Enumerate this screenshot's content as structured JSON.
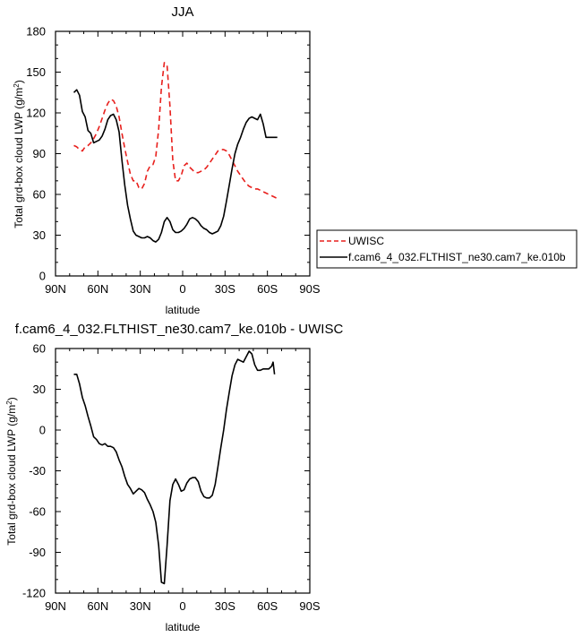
{
  "chart_data": [
    {
      "type": "line",
      "title": "JJA",
      "xlabel": "latitude",
      "ylabel": "Total grd-box cloud LWP (g/m²)",
      "xlim": [
        90,
        -90
      ],
      "ylim": [
        0,
        180
      ],
      "x_ticks": [
        90,
        60,
        30,
        0,
        -30,
        -60,
        -90
      ],
      "x_tick_labels": [
        "90N",
        "60N",
        "30N",
        "0",
        "30S",
        "60S",
        "90S"
      ],
      "y_ticks": [
        0,
        30,
        60,
        90,
        120,
        150,
        180
      ],
      "y_tick_labels": [
        "0",
        "30",
        "60",
        "90",
        "120",
        "150",
        "180"
      ],
      "legend_position": "right",
      "series": [
        {
          "name": "UWISC",
          "color": "#e8201d",
          "dash": "dashed",
          "x": [
            77,
            75,
            73,
            71,
            69,
            67,
            65,
            63,
            61,
            59,
            57,
            55,
            53,
            51,
            49,
            47,
            45,
            43,
            41,
            39,
            37,
            35,
            33,
            31,
            29,
            27,
            25,
            23,
            21,
            19,
            17,
            15,
            13,
            11,
            9,
            7,
            5,
            3,
            1,
            -1,
            -3,
            -5,
            -7,
            -9,
            -11,
            -13,
            -15,
            -17,
            -19,
            -21,
            -23,
            -25,
            -27,
            -29,
            -31,
            -33,
            -35,
            -37,
            -39,
            -41,
            -43,
            -45,
            -47,
            -49,
            -51,
            -53,
            -55,
            -57,
            -59,
            -61,
            -63,
            -65,
            -67
          ],
          "y": [
            96,
            95,
            93,
            92,
            95,
            96,
            98,
            101,
            105,
            110,
            116,
            122,
            127,
            130,
            129,
            125,
            117,
            105,
            94,
            84,
            75,
            70,
            70,
            65,
            64,
            68,
            77,
            81,
            82,
            88,
            108,
            139,
            157,
            155,
            125,
            85,
            70,
            70,
            74,
            81,
            83,
            80,
            78,
            76,
            76,
            77,
            78,
            80,
            83,
            86,
            89,
            92,
            93,
            93,
            92,
            89,
            85,
            81,
            77,
            74,
            71,
            68,
            66,
            65,
            64,
            64,
            63,
            62,
            61,
            60,
            59,
            58,
            57
          ]
        },
        {
          "name": "f.cam6_4_032.FLTHIST_ne30.cam7_ke.010b",
          "color": "#000000",
          "dash": "solid",
          "x": [
            77,
            75,
            73,
            71,
            69,
            67,
            65,
            63,
            61,
            59,
            57,
            55,
            53,
            51,
            49,
            47,
            45,
            43,
            41,
            39,
            37,
            35,
            33,
            31,
            29,
            27,
            25,
            23,
            21,
            19,
            17,
            15,
            13,
            11,
            9,
            7,
            5,
            3,
            1,
            -1,
            -3,
            -5,
            -7,
            -9,
            -11,
            -13,
            -15,
            -17,
            -19,
            -21,
            -23,
            -25,
            -27,
            -29,
            -31,
            -33,
            -35,
            -37,
            -39,
            -41,
            -43,
            -45,
            -47,
            -49,
            -51,
            -53,
            -55,
            -57,
            -59,
            -61,
            -63,
            -65,
            -67
          ],
          "y": [
            135,
            137,
            133,
            121,
            117,
            107,
            105,
            98,
            99,
            100,
            103,
            108,
            115,
            118,
            119,
            115,
            106,
            85,
            67,
            52,
            42,
            33,
            30,
            29,
            28,
            28,
            29,
            28,
            26,
            25,
            27,
            32,
            40,
            43,
            40,
            34,
            32,
            32,
            33,
            35,
            38,
            42,
            43,
            42,
            40,
            37,
            35,
            34,
            32,
            31,
            32,
            33,
            37,
            44,
            55,
            67,
            79,
            90,
            97,
            102,
            108,
            113,
            116,
            117,
            116,
            115,
            119,
            112,
            102,
            102,
            102,
            102,
            102
          ]
        }
      ]
    },
    {
      "type": "line",
      "title": "f.cam6_4_032.FLTHIST_ne30.cam7_ke.010b - UWISC",
      "xlabel": "latitude",
      "ylabel": "Total grd-box cloud LWP (g/m²)",
      "xlim": [
        90,
        -90
      ],
      "ylim": [
        -120,
        60
      ],
      "x_ticks": [
        90,
        60,
        30,
        0,
        -30,
        -60,
        -90
      ],
      "x_tick_labels": [
        "90N",
        "60N",
        "30N",
        "0",
        "30S",
        "60S",
        "90S"
      ],
      "y_ticks": [
        -120,
        -90,
        -60,
        -30,
        0,
        30,
        60
      ],
      "y_tick_labels": [
        "-120",
        "-90",
        "-60",
        "-30",
        "0",
        "30",
        "60"
      ],
      "series": [
        {
          "color": "#000000",
          "dash": "solid",
          "x": [
            77,
            75,
            73,
            71,
            69,
            67,
            65,
            63,
            61,
            59,
            57,
            55,
            53,
            51,
            49,
            47,
            45,
            43,
            41,
            39,
            37,
            35,
            33,
            31,
            29,
            27,
            25,
            23,
            21,
            19,
            17,
            15,
            13,
            11,
            9,
            7,
            5,
            3,
            1,
            -1,
            -3,
            -5,
            -7,
            -9,
            -11,
            -13,
            -15,
            -17,
            -19,
            -21,
            -23,
            -25,
            -27,
            -29,
            -31,
            -33,
            -35,
            -37,
            -39,
            -41,
            -43,
            -45,
            -47,
            -49,
            -51,
            -53,
            -55,
            -57,
            -59,
            -61,
            -63,
            -64,
            -65
          ],
          "y": [
            41,
            41,
            34,
            24,
            18,
            10,
            3,
            -5,
            -7,
            -10,
            -11,
            -10,
            -12,
            -12,
            -13,
            -16,
            -22,
            -27,
            -34,
            -40,
            -43,
            -47,
            -45,
            -43,
            -44,
            -46,
            -51,
            -55,
            -60,
            -68,
            -85,
            -112,
            -113,
            -85,
            -52,
            -40,
            -36,
            -40,
            -45,
            -44,
            -39,
            -36,
            -35,
            -35,
            -38,
            -45,
            -49,
            -50,
            -50,
            -48,
            -40,
            -27,
            -13,
            0,
            15,
            28,
            40,
            48,
            52,
            51,
            50,
            54,
            58,
            56,
            48,
            44,
            44,
            45,
            45,
            45,
            47,
            50,
            41
          ]
        }
      ]
    }
  ]
}
